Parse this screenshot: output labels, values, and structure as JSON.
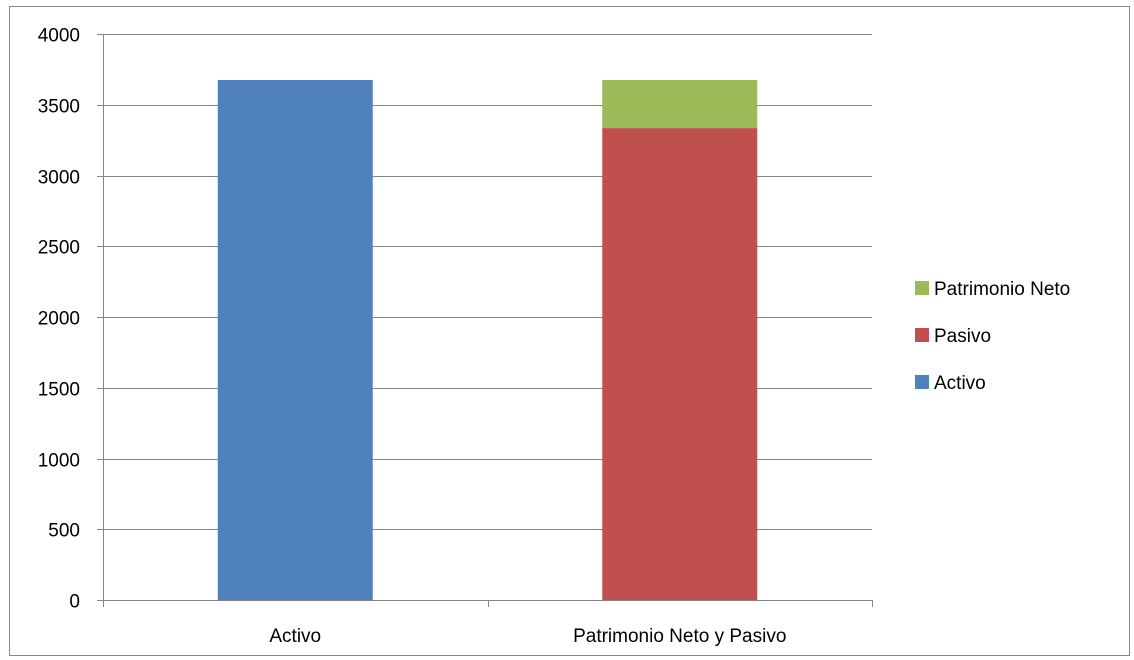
{
  "chart_data": {
    "type": "bar",
    "stacked": true,
    "categories": [
      "Activo",
      "Patrimonio Neto y Pasivo"
    ],
    "series": [
      {
        "name": "Activo",
        "values": [
          3675,
          0
        ],
        "color": "#4F81BD"
      },
      {
        "name": "Pasivo",
        "values": [
          0,
          3335
        ],
        "color": "#C0504D"
      },
      {
        "name": "Patrimonio Neto",
        "values": [
          0,
          340
        ],
        "color": "#9BBB59"
      }
    ],
    "title": "",
    "xlabel": "",
    "ylabel": "",
    "ylim": [
      0,
      4000
    ],
    "yticks": [
      0,
      500,
      1000,
      1500,
      2000,
      2500,
      3000,
      3500,
      4000
    ],
    "grid": true,
    "legend": {
      "placement": "right",
      "order": [
        "Patrimonio Neto",
        "Pasivo",
        "Activo"
      ]
    },
    "colors": {
      "gridline": "#868686",
      "axis": "#868686",
      "frame": "#868686"
    }
  }
}
